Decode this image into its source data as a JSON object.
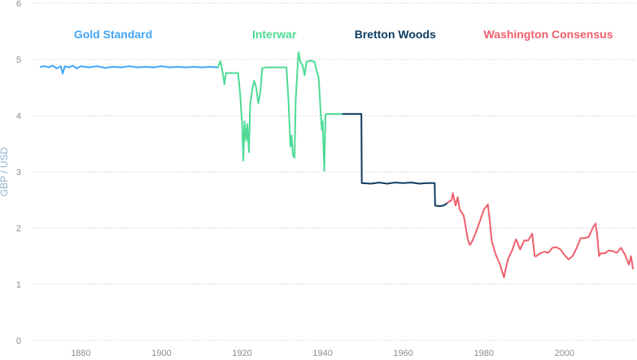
{
  "chart_data": {
    "type": "line",
    "title": "",
    "xlabel": "",
    "ylabel": "GBP / USD",
    "xlim": [
      1868,
      2018
    ],
    "ylim": [
      0,
      6
    ],
    "x_ticks": [
      "1880",
      "1900",
      "1920",
      "1940",
      "1960",
      "1980",
      "2000"
    ],
    "y_ticks": [
      "0",
      "1",
      "2",
      "3",
      "4",
      "5",
      "6"
    ],
    "grid": "horizontal dotted",
    "legend": "era labels above lines, top",
    "eras": [
      {
        "name": "Gold Standard",
        "color": "#42a5f5",
        "label_x": 1888
      },
      {
        "name": "Interwar",
        "color": "#4ddb96",
        "label_x": 1928
      },
      {
        "name": "Bretton Woods",
        "color": "#0f3d63",
        "label_x": 1958
      },
      {
        "name": "Washington Consensus",
        "color": "#ef5f6d",
        "label_x": 1996
      }
    ],
    "series": [
      {
        "color": "#42a5f5",
        "points": [
          [
            1870,
            4.87
          ],
          [
            1871,
            4.88
          ],
          [
            1872,
            4.86
          ],
          [
            1873,
            4.89
          ],
          [
            1874,
            4.84
          ],
          [
            1875,
            4.88
          ],
          [
            1875.5,
            4.75
          ],
          [
            1876,
            4.88
          ],
          [
            1877,
            4.86
          ],
          [
            1878,
            4.89
          ],
          [
            1879,
            4.84
          ],
          [
            1880,
            4.88
          ],
          [
            1882,
            4.86
          ],
          [
            1884,
            4.88
          ],
          [
            1886,
            4.85
          ],
          [
            1888,
            4.87
          ],
          [
            1890,
            4.86
          ],
          [
            1892,
            4.88
          ],
          [
            1894,
            4.86
          ],
          [
            1896,
            4.87
          ],
          [
            1898,
            4.86
          ],
          [
            1900,
            4.88
          ],
          [
            1902,
            4.86
          ],
          [
            1904,
            4.87
          ],
          [
            1906,
            4.86
          ],
          [
            1908,
            4.87
          ],
          [
            1910,
            4.86
          ],
          [
            1912,
            4.87
          ],
          [
            1914,
            4.86
          ]
        ]
      },
      {
        "color": "#4ddb96",
        "points": [
          [
            1914,
            4.86
          ],
          [
            1914.6,
            4.97
          ],
          [
            1915.2,
            4.76
          ],
          [
            1915.6,
            4.56
          ],
          [
            1916,
            4.76
          ],
          [
            1917,
            4.76
          ],
          [
            1918,
            4.76
          ],
          [
            1919,
            4.76
          ],
          [
            1919.5,
            4.4
          ],
          [
            1920,
            3.85
          ],
          [
            1920.3,
            3.2
          ],
          [
            1920.6,
            3.9
          ],
          [
            1921,
            3.55
          ],
          [
            1921.3,
            3.85
          ],
          [
            1921.7,
            3.35
          ],
          [
            1922,
            4.2
          ],
          [
            1922.5,
            4.45
          ],
          [
            1923,
            4.62
          ],
          [
            1923.5,
            4.5
          ],
          [
            1924,
            4.22
          ],
          [
            1924.5,
            4.4
          ],
          [
            1925,
            4.84
          ],
          [
            1926,
            4.86
          ],
          [
            1928,
            4.86
          ],
          [
            1930,
            4.86
          ],
          [
            1931,
            4.86
          ],
          [
            1931.5,
            4.3
          ],
          [
            1932,
            3.45
          ],
          [
            1932.3,
            3.65
          ],
          [
            1932.6,
            3.3
          ],
          [
            1933,
            3.25
          ],
          [
            1933.3,
            4.3
          ],
          [
            1934,
            5.13
          ],
          [
            1934.5,
            4.95
          ],
          [
            1935,
            4.9
          ],
          [
            1935.5,
            4.72
          ],
          [
            1936,
            4.96
          ],
          [
            1937,
            4.98
          ],
          [
            1938,
            4.96
          ],
          [
            1938.5,
            4.8
          ],
          [
            1939,
            4.68
          ],
          [
            1939.5,
            4.05
          ],
          [
            1939.8,
            3.75
          ],
          [
            1940,
            3.9
          ],
          [
            1940.4,
            3.02
          ],
          [
            1940.7,
            4.02
          ],
          [
            1941,
            4.03
          ],
          [
            1943,
            4.03
          ],
          [
            1945,
            4.03
          ]
        ]
      },
      {
        "color": "#0f3d63",
        "points": [
          [
            1945,
            4.03
          ],
          [
            1947,
            4.03
          ],
          [
            1948,
            4.03
          ],
          [
            1949.6,
            4.03
          ],
          [
            1949.7,
            2.8
          ],
          [
            1952,
            2.79
          ],
          [
            1954,
            2.81
          ],
          [
            1956,
            2.79
          ],
          [
            1958,
            2.81
          ],
          [
            1960,
            2.8
          ],
          [
            1962,
            2.81
          ],
          [
            1964,
            2.79
          ],
          [
            1966,
            2.8
          ],
          [
            1967.8,
            2.8
          ],
          [
            1967.9,
            2.4
          ],
          [
            1969,
            2.39
          ],
          [
            1970,
            2.4
          ],
          [
            1971,
            2.45
          ]
        ]
      },
      {
        "color": "#ef5f6d",
        "points": [
          [
            1971,
            2.45
          ],
          [
            1972,
            2.5
          ],
          [
            1972.3,
            2.62
          ],
          [
            1973,
            2.4
          ],
          [
            1973.5,
            2.55
          ],
          [
            1974,
            2.33
          ],
          [
            1975,
            2.22
          ],
          [
            1976,
            1.8
          ],
          [
            1976.5,
            1.7
          ],
          [
            1977,
            1.75
          ],
          [
            1978,
            1.92
          ],
          [
            1979,
            2.12
          ],
          [
            1980,
            2.33
          ],
          [
            1981,
            2.42
          ],
          [
            1981.5,
            2.1
          ],
          [
            1982,
            1.75
          ],
          [
            1983,
            1.52
          ],
          [
            1984,
            1.35
          ],
          [
            1985,
            1.12
          ],
          [
            1985.5,
            1.3
          ],
          [
            1986,
            1.45
          ],
          [
            1987,
            1.6
          ],
          [
            1988,
            1.8
          ],
          [
            1989,
            1.62
          ],
          [
            1990,
            1.78
          ],
          [
            1991,
            1.78
          ],
          [
            1992,
            1.9
          ],
          [
            1992.6,
            1.5
          ],
          [
            1993,
            1.5
          ],
          [
            1994,
            1.55
          ],
          [
            1995,
            1.58
          ],
          [
            1996,
            1.56
          ],
          [
            1997,
            1.65
          ],
          [
            1998,
            1.66
          ],
          [
            1999,
            1.62
          ],
          [
            2000,
            1.52
          ],
          [
            2001,
            1.44
          ],
          [
            2002,
            1.5
          ],
          [
            2003,
            1.64
          ],
          [
            2004,
            1.82
          ],
          [
            2005,
            1.82
          ],
          [
            2006,
            1.84
          ],
          [
            2007,
            2.0
          ],
          [
            2007.7,
            2.08
          ],
          [
            2008,
            1.95
          ],
          [
            2008.6,
            1.5
          ],
          [
            2009,
            1.55
          ],
          [
            2010,
            1.55
          ],
          [
            2011,
            1.6
          ],
          [
            2012,
            1.59
          ],
          [
            2013,
            1.56
          ],
          [
            2014,
            1.65
          ],
          [
            2015,
            1.53
          ],
          [
            2016,
            1.35
          ],
          [
            2016.5,
            1.5
          ],
          [
            2017,
            1.28
          ]
        ]
      }
    ]
  }
}
